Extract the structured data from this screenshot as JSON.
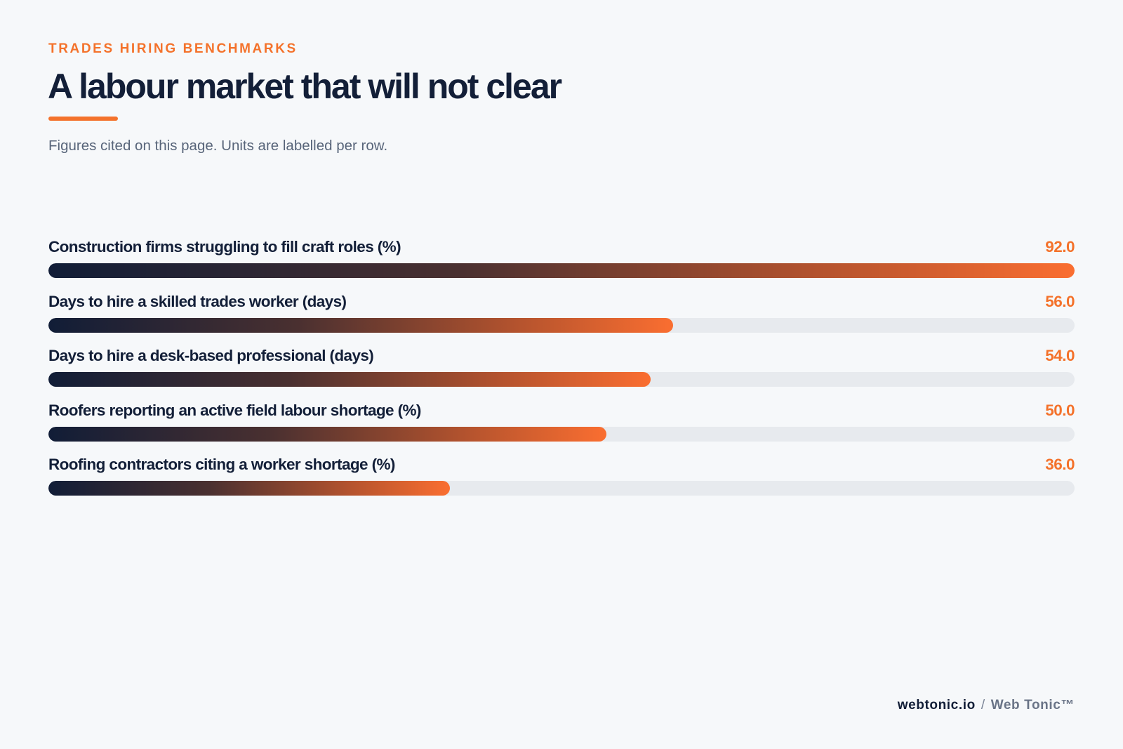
{
  "header": {
    "eyebrow": "TRADES HIRING BENCHMARKS",
    "title": "A labour market that will not clear",
    "subtitle": "Figures cited on this page. Units are labelled per row."
  },
  "footer": {
    "domain": "webtonic.io",
    "separator": "/",
    "brand": "Web Tonic™"
  },
  "colors": {
    "accent": "#f4722b",
    "navy": "#131f38",
    "track": "#e7eaee",
    "background": "#f6f8fa"
  },
  "chart_data": {
    "type": "bar",
    "orientation": "horizontal",
    "categories": [
      "Construction firms struggling to fill craft roles (%)",
      "Days to hire a skilled trades worker (days)",
      "Days to hire a desk-based professional (days)",
      "Roofers reporting an active field labour shortage (%)",
      "Roofing contractors citing a worker shortage (%)"
    ],
    "values": [
      92.0,
      56.0,
      54.0,
      50.0,
      36.0
    ],
    "value_labels": [
      "92.0",
      "56.0",
      "54.0",
      "50.0",
      "36.0"
    ],
    "xlim": [
      0,
      92
    ],
    "grid": false,
    "legend": "none"
  }
}
